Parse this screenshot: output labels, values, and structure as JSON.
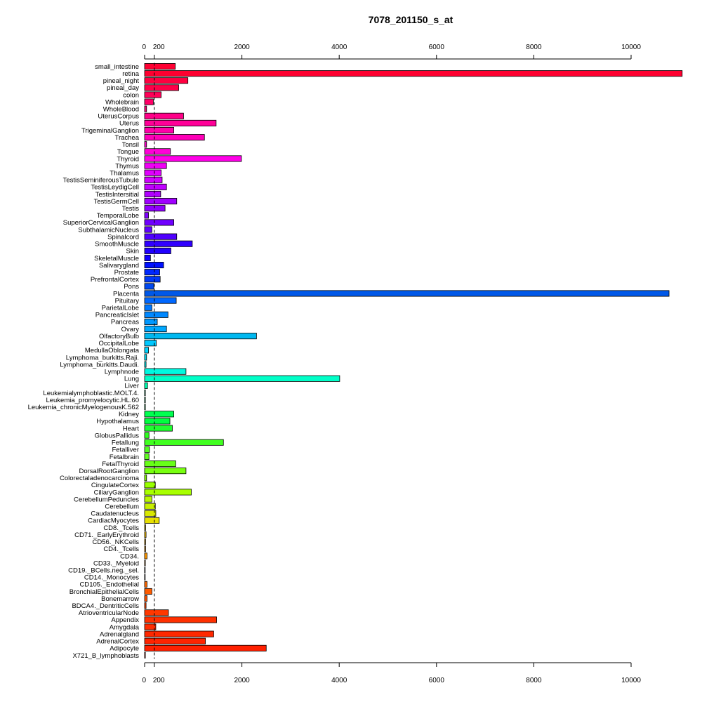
{
  "chart_data": {
    "type": "bar",
    "orientation": "horizontal",
    "title": "7078_201150_s_at",
    "xlabel": "",
    "ylabel": "",
    "xlim": [
      0,
      11050
    ],
    "x_ticks": [
      0,
      200,
      2000,
      4000,
      6000,
      8000,
      10000
    ],
    "x_tick_labels": [
      "0",
      "200",
      "2000",
      "4000",
      "6000",
      "8000",
      "10000"
    ],
    "reference_line": 200,
    "grid": false,
    "legend": "none",
    "categories": [
      "small_intestine",
      "retina",
      "pineal_night",
      "pineal_day",
      "colon",
      "Wholebrain",
      "WholeBlood",
      "UterusCorpus",
      "Uterus",
      "TrigeminalGanglion",
      "Trachea",
      "Tonsil",
      "Tongue",
      "Thyroid",
      "Thymus",
      "Thalamus",
      "TestisSeminiferousTubule",
      "TestisLeydigCell",
      "TestisIntersitial",
      "TestisGermCell",
      "Testis",
      "TemporalLobe",
      "SuperiorCervicalGanglion",
      "SubthalamicNucleus",
      "Spinalcord",
      "SmoothMuscle",
      "Skin",
      "SkeletalMuscle",
      "Salivarygland",
      "Prostate",
      "PrefrontalCortex",
      "Pons",
      "Placenta",
      "Pituitary",
      "ParietalLobe",
      "PancreaticIslet",
      "Pancreas",
      "Ovary",
      "OlfactoryBulb",
      "OccipitalLobe",
      "MedullaOblongata",
      "Lymphoma_burkitts.Raji.",
      "Lymphoma_burkitts.Daudi.",
      "Lymphnode",
      "Lung",
      "Liver",
      "Leukemialymphoblastic.MOLT.4.",
      "Leukemia_promyelocytic.HL.60",
      "Leukemia_chronicMyelogenousK.562",
      "Kidney",
      "Hypothalamus",
      "Heart",
      "GlobusPallidus",
      "Fetallung",
      "Fetalliver",
      "Fetalbrain",
      "FetalThyroid",
      "DorsalRootGanglion",
      "Colorectaladenocarcinoma",
      "CingulateCortex",
      "CiliaryGanglion",
      "CerebellumPeduncles",
      "Cerebellum",
      "Caudatenucleus",
      "CardiacMyocytes",
      "CD8._Tcells",
      "CD71._EarlyErythroid",
      "CD56._NKCells",
      "CD4._Tcells",
      "CD34.",
      "CD33._Myeloid",
      "CD19._BCells.neg._sel.",
      "CD14._Monocytes",
      "CD105._Endothelial",
      "BronchialEpithelialCells",
      "Bonemarrow",
      "BDCA4._DentriticCells",
      "AtrioventricularNode",
      "Appendix",
      "Amygdala",
      "Adrenalgland",
      "AdrenalCortex",
      "Adipocyte",
      "X721_B_lymphoblasts"
    ],
    "values": [
      630,
      11050,
      890,
      700,
      340,
      180,
      40,
      800,
      1470,
      600,
      1230,
      40,
      530,
      1990,
      450,
      340,
      360,
      450,
      330,
      660,
      420,
      80,
      600,
      150,
      660,
      980,
      540,
      120,
      390,
      310,
      320,
      190,
      10780,
      650,
      150,
      480,
      260,
      450,
      2300,
      240,
      80,
      40,
      30,
      850,
      4010,
      60,
      15,
      15,
      15,
      600,
      520,
      570,
      90,
      1620,
      100,
      90,
      640,
      850,
      40,
      220,
      960,
      150,
      220,
      230,
      300,
      20,
      30,
      20,
      20,
      50,
      15,
      10,
      10,
      50,
      150,
      50,
      30,
      490,
      1480,
      230,
      1420,
      1250,
      2500,
      15
    ],
    "colors": [
      "#FF0033",
      "#FF0030",
      "#FF0040",
      "#FF0048",
      "#FF0058",
      "#FF0068",
      "#FF0078",
      "#FF0088",
      "#FF0098",
      "#FF00A8",
      "#FF00B8",
      "#FF00C8",
      "#FF00D8",
      "#FF00E8",
      "#F000F5",
      "#E000FF",
      "#D000FF",
      "#C000FF",
      "#B000FF",
      "#A000FF",
      "#9000FF",
      "#8000FF",
      "#7000FF",
      "#6000FF",
      "#5000FF",
      "#3000FF",
      "#2000FF",
      "#1000FF",
      "#0010FF",
      "#0028FF",
      "#0038F8",
      "#0048F0",
      "#0058E8",
      "#0068FF",
      "#0078FF",
      "#0088FF",
      "#0098FF",
      "#00A8FF",
      "#00B8F0",
      "#00C8FF",
      "#00D4FF",
      "#00E0F8",
      "#00ECF0",
      "#00F8E0",
      "#00FFC8",
      "#00FFB0",
      "#00FF98",
      "#00FF80",
      "#00FF68",
      "#00FF50",
      "#00FF40",
      "#20FF30",
      "#30FF20",
      "#40FF20",
      "#50FF20",
      "#60FF20",
      "#68FF18",
      "#78FF10",
      "#88FF08",
      "#98FF00",
      "#A8FF00",
      "#B8F800",
      "#C8F000",
      "#D8E800",
      "#E8E000",
      "#F0D000",
      "#F8C000",
      "#FFB000",
      "#FFA000",
      "#FF9800",
      "#FF8C00",
      "#FF8000",
      "#FF7400",
      "#FF6800",
      "#FF5C00",
      "#FF5000",
      "#FF4400",
      "#FF3800",
      "#FF3000",
      "#FF2C00",
      "#FF2800",
      "#FF2400",
      "#FF2000",
      "#FF1C00"
    ]
  }
}
